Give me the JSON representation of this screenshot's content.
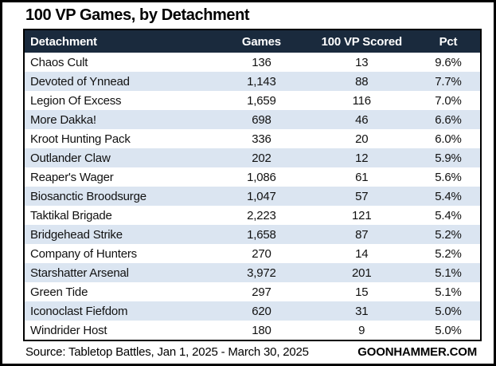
{
  "title": "100 VP Games, by Detachment",
  "chart_data": {
    "type": "table",
    "title": "100 VP Games, by Detachment",
    "columns": [
      "Detachment",
      "Games",
      "100 VP Scored",
      "Pct"
    ],
    "rows": [
      [
        "Chaos Cult",
        "136",
        "13",
        "9.6%"
      ],
      [
        "Devoted of Ynnead",
        "1,143",
        "88",
        "7.7%"
      ],
      [
        "Legion Of Excess",
        "1,659",
        "116",
        "7.0%"
      ],
      [
        "More Dakka!",
        "698",
        "46",
        "6.6%"
      ],
      [
        "Kroot Hunting Pack",
        "336",
        "20",
        "6.0%"
      ],
      [
        "Outlander Claw",
        "202",
        "12",
        "5.9%"
      ],
      [
        "Reaper's Wager",
        "1,086",
        "61",
        "5.6%"
      ],
      [
        "Biosanctic Broodsurge",
        "1,047",
        "57",
        "5.4%"
      ],
      [
        "Taktikal Brigade",
        "2,223",
        "121",
        "5.4%"
      ],
      [
        "Bridgehead Strike",
        "1,658",
        "87",
        "5.2%"
      ],
      [
        "Company of Hunters",
        "270",
        "14",
        "5.2%"
      ],
      [
        "Starshatter Arsenal",
        "3,972",
        "201",
        "5.1%"
      ],
      [
        "Green Tide",
        "297",
        "15",
        "5.1%"
      ],
      [
        "Iconoclast Fiefdom",
        "620",
        "31",
        "5.0%"
      ],
      [
        "Windrider Host",
        "180",
        "9",
        "5.0%"
      ]
    ],
    "layout": {
      "striped": true,
      "stripe_pattern": "even rows shaded",
      "numeric_columns_alignment": "center",
      "detachment_column_alignment": "left"
    }
  },
  "footer": {
    "source": "Source: Tabletop Battles, Jan 1, 2025 - March 30, 2025",
    "site": "GOONHAMMER.COM"
  },
  "colors": {
    "header_bg": "#1a2a3d",
    "header_text": "#ffffff",
    "stripe_bg": "#dbe5f1",
    "frame": "#000000",
    "background": "#ffffff"
  }
}
